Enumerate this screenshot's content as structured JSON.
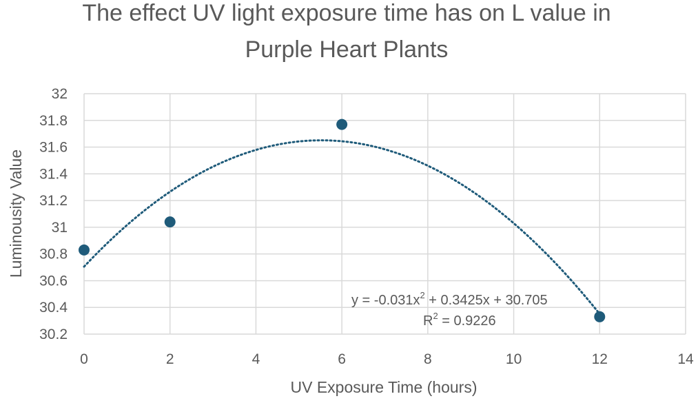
{
  "chart_data": {
    "type": "scatter",
    "title_lines": [
      "The effect UV light exposure time has on L value in",
      "Purple Heart Plants"
    ],
    "xlabel": "UV Exposure Time (hours)",
    "ylabel": "Luminousity Value",
    "xlim": [
      0,
      14
    ],
    "ylim": [
      30.2,
      32
    ],
    "x_ticks": [
      "0",
      "2",
      "4",
      "6",
      "8",
      "10",
      "12",
      "14"
    ],
    "y_ticks": [
      "30.2",
      "30.4",
      "30.6",
      "30.8",
      "31",
      "31.2",
      "31.4",
      "31.6",
      "31.8",
      "32"
    ],
    "grid": true,
    "series": [
      {
        "x": [
          0,
          2,
          6,
          12
        ],
        "y": [
          30.83,
          31.04,
          31.77,
          30.33
        ],
        "color": "#1f5b7a"
      }
    ],
    "trendline": {
      "type": "polynomial",
      "order": 2,
      "coefficients": [
        -0.031,
        0.3425,
        30.705
      ],
      "x_range": [
        0,
        12
      ],
      "style": "dotted",
      "color": "#1f5b7a",
      "equation_text": "y = -0.031x",
      "equation_sup": "2",
      "equation_rest": " + 0.3425x + 30.705",
      "r2_prefix": "R",
      "r2_sup": "2",
      "r2_rest": " = 0.9226"
    }
  }
}
